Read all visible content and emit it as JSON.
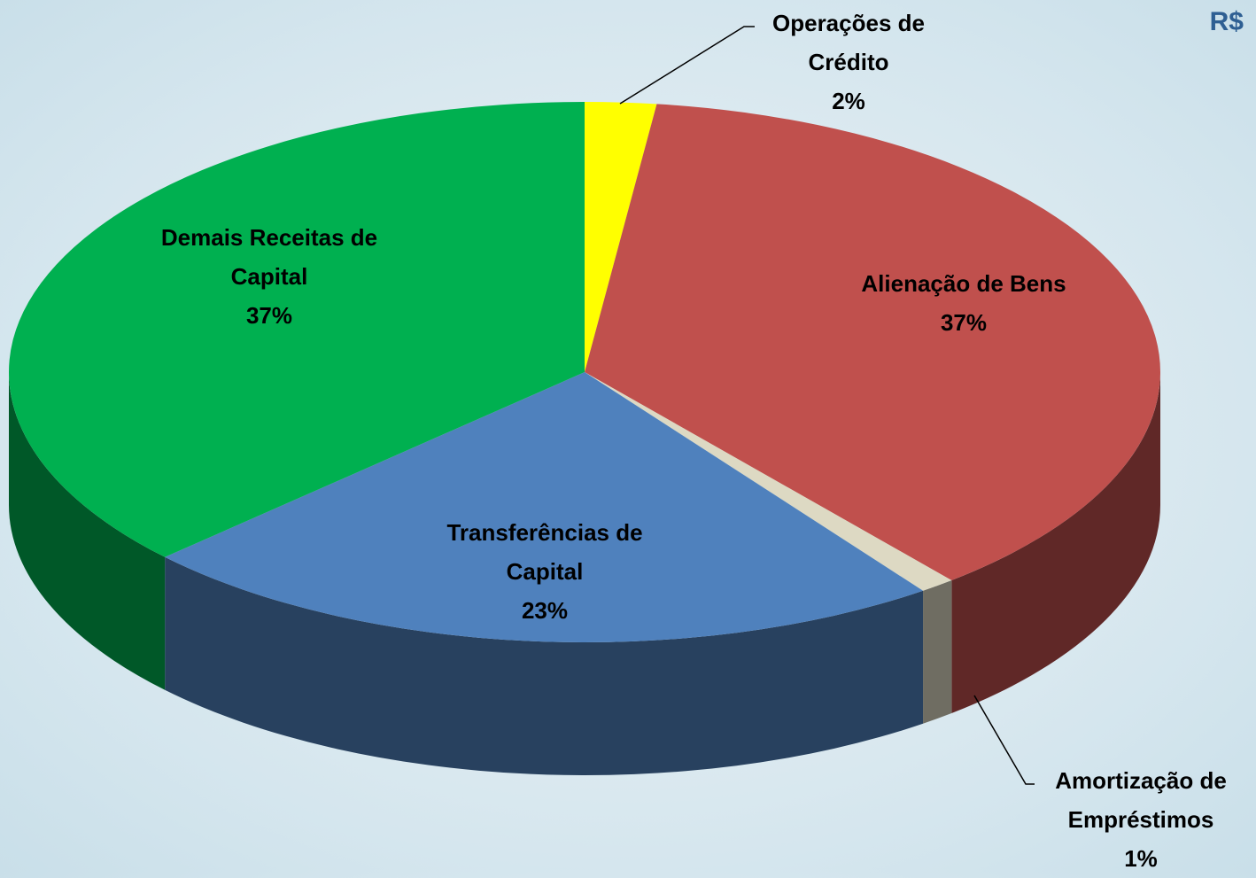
{
  "chart_data": {
    "type": "pie",
    "title": "R$",
    "categories": [
      "Operações de Crédito",
      "Alienação de Bens",
      "Amortização de Empréstimos",
      "Transferências de Capital",
      "Demais Receitas de Capital"
    ],
    "values": [
      2,
      37,
      1,
      23,
      37
    ],
    "value_labels": [
      "2%",
      "37%",
      "1%",
      "23%",
      "37%"
    ],
    "colors": [
      "#ffff00",
      "#c0504d",
      "#ddd9c3",
      "#4f81bd",
      "#00b050"
    ]
  }
}
